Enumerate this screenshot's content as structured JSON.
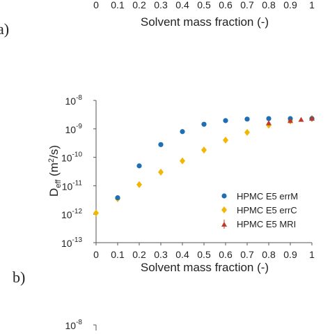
{
  "top_panel": {
    "xticks": [
      "0",
      "0.1",
      "0.2",
      "0.3",
      "0.4",
      "0.5",
      "0.6",
      "0.7",
      "0.8",
      "0.9",
      "1"
    ],
    "xlabel": "Solvent mass fraction (-)",
    "panel_label": "a)"
  },
  "bottom_panel": {
    "ytop_base": "10",
    "ytop_exp": "-8"
  },
  "colors": {
    "blue": "#1f6fb4",
    "gold": "#f2b705",
    "red": "#c0392b",
    "axis": "#555555"
  },
  "chart_data": {
    "type": "scatter",
    "panel_label": "b)",
    "xlabel": "Solvent mass fraction (-)",
    "ylabel": "D_eff (m^2/s)",
    "yscale": "log",
    "xlim": [
      0,
      1
    ],
    "ylim": [
      1e-13,
      1e-08
    ],
    "xticks": [
      "0",
      "0.1",
      "0.2",
      "0.3",
      "0.4",
      "0.5",
      "0.6",
      "0.7",
      "0.8",
      "0.9",
      "1"
    ],
    "yticks": [
      {
        "base": "10",
        "exp": "-8",
        "value": 1e-08
      },
      {
        "base": "10",
        "exp": "-9",
        "value": 1e-09
      },
      {
        "base": "10",
        "exp": "-10",
        "value": 1e-10
      },
      {
        "base": "10",
        "exp": "-11",
        "value": 1e-11
      },
      {
        "base": "10",
        "exp": "-12",
        "value": 1e-12
      },
      {
        "base": "10",
        "exp": "-13",
        "value": 1e-13
      }
    ],
    "legend_position": "bottom-right",
    "series": [
      {
        "name": "HPMC E5 errM",
        "marker": "circle",
        "color": "#1f6fb4",
        "x": [
          0.1,
          0.2,
          0.3,
          0.4,
          0.5,
          0.6,
          0.7,
          0.8,
          0.9,
          1.0
        ],
        "y": [
          3.8e-12,
          5e-11,
          2.8e-10,
          8e-10,
          1.45e-09,
          1.95e-09,
          2.2e-09,
          2.3e-09,
          2.3e-09,
          2.3e-09
        ]
      },
      {
        "name": "HPMC E5 errC",
        "marker": "diamond",
        "color": "#f2b705",
        "x": [
          0,
          0.1,
          0.2,
          0.3,
          0.4,
          0.5,
          0.6,
          0.7,
          0.8,
          0.9,
          1.0
        ],
        "y": [
          1.1e-12,
          3.5e-12,
          1.1e-11,
          3e-11,
          7.5e-11,
          1.8e-10,
          4e-10,
          7.5e-10,
          1.35e-09,
          1.9e-09,
          2.3e-09
        ]
      },
      {
        "name": "HPMC E5 MRI",
        "marker": "triangle",
        "color": "#c0392b",
        "x": [
          0.8,
          0.9,
          0.95,
          1.0
        ],
        "y": [
          1.6e-09,
          1.9e-09,
          2.1e-09,
          2.3e-09
        ],
        "err": [
          3e-10,
          2.5e-10,
          2e-10,
          2e-10
        ]
      }
    ]
  }
}
